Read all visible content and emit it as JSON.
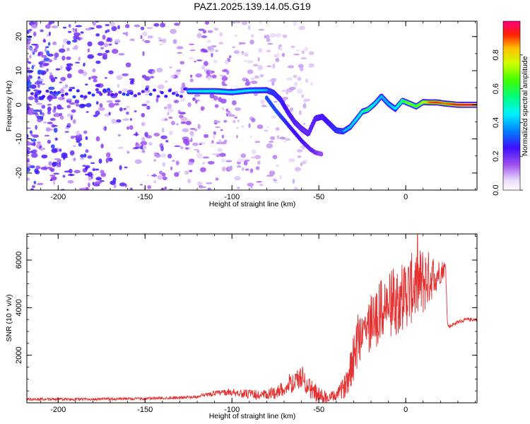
{
  "title": "PAZ1.2025.139.14.05.G19",
  "colors": {
    "snr_line": "#e53030",
    "axis": "#000000"
  },
  "chart_data": [
    {
      "type": "heatmap",
      "xlabel": "Height of straight line (km)",
      "ylabel": "Frequency (Hz)",
      "xlim": [
        -218,
        41
      ],
      "ylim": [
        -25,
        24.5
      ],
      "xticks": [
        -200,
        -150,
        -100,
        -50,
        0
      ],
      "xtick_labels": [
        "-200",
        "-150",
        "-100",
        "-50",
        "0"
      ],
      "yticks": [
        -20,
        -10,
        0,
        10,
        20
      ],
      "ytick_labels": [
        "-20",
        "-10",
        "0",
        "10",
        "20"
      ],
      "colorbar": {
        "label": "Normalized spectral amplitude",
        "range": [
          0,
          1
        ],
        "ticks": [
          0.0,
          0.2,
          0.4,
          0.6,
          0.8
        ],
        "tick_labels": [
          "0.0",
          "0.2",
          "0.4",
          "0.6",
          "0.8"
        ]
      },
      "ridge": {
        "x": [
          -125,
          -110,
          -100,
          -90,
          -80,
          -76,
          -72,
          -68,
          -64,
          -60,
          -56,
          -52,
          -48,
          -44,
          -40,
          -36,
          -32,
          -28,
          -25,
          -22,
          -18,
          -14,
          -10,
          -6,
          -2,
          2,
          6,
          10,
          14,
          18,
          22,
          26,
          30,
          35,
          41
        ],
        "freq": [
          4,
          4,
          3.7,
          4.2,
          4.3,
          3.5,
          1.5,
          -2,
          -5,
          -7,
          -8.5,
          -4,
          -3.5,
          -5.5,
          -7.5,
          -7.8,
          -6.5,
          -4,
          -2,
          -1.5,
          0.2,
          2.5,
          0.3,
          -1.2,
          1.2,
          0.4,
          -0.5,
          0.8,
          0.7,
          0.7,
          0.4,
          0.2,
          0,
          0,
          0
        ],
        "amp": [
          0.45,
          0.5,
          0.45,
          0.45,
          0.4,
          0.38,
          0.35,
          0.32,
          0.3,
          0.28,
          0.28,
          0.3,
          0.32,
          0.35,
          0.38,
          0.4,
          0.42,
          0.45,
          0.5,
          0.6,
          0.45,
          0.4,
          0.4,
          0.45,
          0.6,
          0.7,
          0.65,
          0.75,
          0.9,
          0.92,
          0.88,
          0.9,
          0.95,
          0.98,
          1.0
        ]
      },
      "secondary_branch": {
        "x": [
          -80,
          -75,
          -70,
          -65,
          -60,
          -55,
          -52,
          -48
        ],
        "freq": [
          2,
          -1.5,
          -4.5,
          -7.5,
          -10.5,
          -13,
          -14,
          -14.5
        ],
        "amp": [
          0.3,
          0.3,
          0.28,
          0.25,
          0.25,
          0.22,
          0.2,
          0.15
        ]
      }
    },
    {
      "type": "line",
      "xlabel": "Height of straight line (km)",
      "ylabel": "SNR (10 * v/v)",
      "xlim": [
        -218,
        41
      ],
      "ylim": [
        0,
        7100
      ],
      "xticks": [
        -200,
        -150,
        -100,
        -50,
        0
      ],
      "xtick_labels": [
        "-200",
        "-150",
        "-100",
        "-50",
        "0"
      ],
      "yticks": [
        2000,
        4000,
        6000
      ],
      "ytick_labels": [
        "2000",
        "4000",
        "6000"
      ],
      "envelope": {
        "x": [
          -218,
          -180,
          -150,
          -120,
          -110,
          -100,
          -90,
          -80,
          -70,
          -65,
          -60,
          -55,
          -50,
          -45,
          -40,
          -35,
          -30,
          -28,
          -25,
          -22,
          -20,
          -15,
          -10,
          -5,
          0,
          5,
          10,
          15,
          20,
          23,
          24,
          25,
          30,
          35,
          41
        ],
        "snr": [
          150,
          150,
          170,
          250,
          400,
          450,
          350,
          300,
          600,
          800,
          1100,
          600,
          300,
          200,
          300,
          700,
          2000,
          2600,
          3200,
          3000,
          3400,
          3800,
          4100,
          4300,
          4600,
          4900,
          5100,
          5300,
          5500,
          5700,
          3300,
          3200,
          3400,
          3500,
          3500
        ]
      },
      "noise_amplitude": {
        "x": [
          -218,
          -120,
          -100,
          -70,
          -60,
          -40,
          -35,
          -30,
          -20,
          -10,
          0,
          10,
          20,
          23,
          24,
          41
        ],
        "amp": [
          60,
          60,
          150,
          300,
          500,
          200,
          500,
          1200,
          1300,
          1400,
          1500,
          1500,
          500,
          300,
          80,
          80
        ]
      }
    }
  ]
}
